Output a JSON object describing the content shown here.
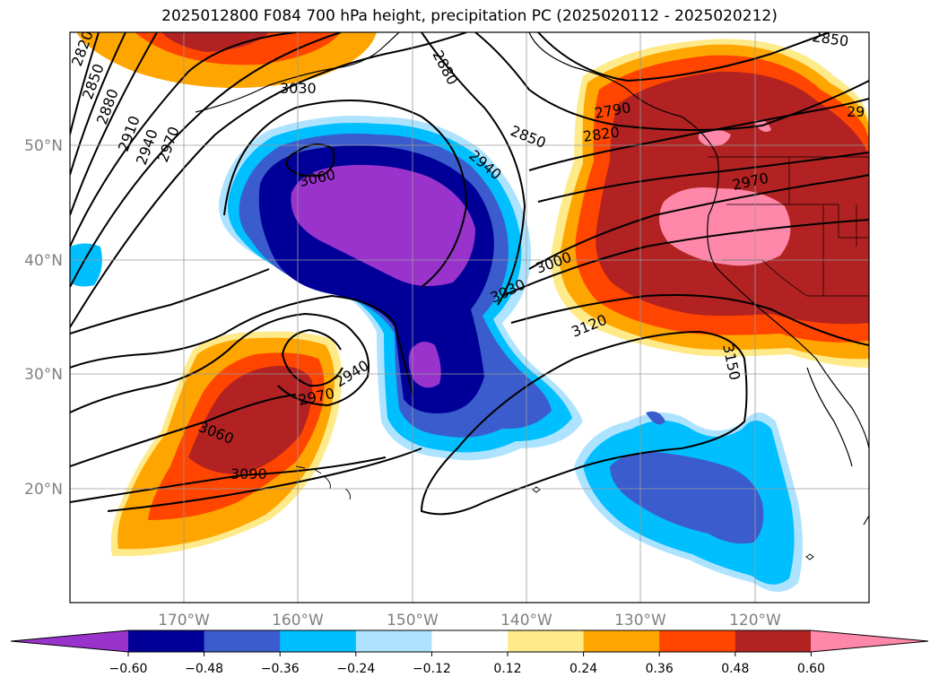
{
  "title": "2025012800 F084 700 hPa height, precipitation PC (2025020112 - 2025020212)",
  "map": {
    "lon_ticks": [
      "170°W",
      "160°W",
      "150°W",
      "140°W",
      "130°W",
      "120°W"
    ],
    "lat_ticks": [
      "50°N",
      "40°N",
      "30°N",
      "20°N"
    ],
    "contour_labels": [
      "2820",
      "2850",
      "2880",
      "2910",
      "2940",
      "2970",
      "3030",
      "3060",
      "2880",
      "2940",
      "2850",
      "2820",
      "2790",
      "2970",
      "3000",
      "3030",
      "3120",
      "3150",
      "2940",
      "2970",
      "3060",
      "3090",
      "2850",
      "29"
    ]
  },
  "colorbar": {
    "colors": [
      "#9933cc",
      "#000099",
      "#3b5ccc",
      "#00bfff",
      "#ade3ff",
      "#ffffff",
      "#ffea8a",
      "#ffa500",
      "#ff4500",
      "#b22222",
      "#ff88aa"
    ],
    "tick_labels": [
      "−0.60",
      "−0.48",
      "−0.36",
      "−0.24",
      "−0.12",
      "0.12",
      "0.24",
      "0.36",
      "0.48",
      "0.60"
    ]
  }
}
